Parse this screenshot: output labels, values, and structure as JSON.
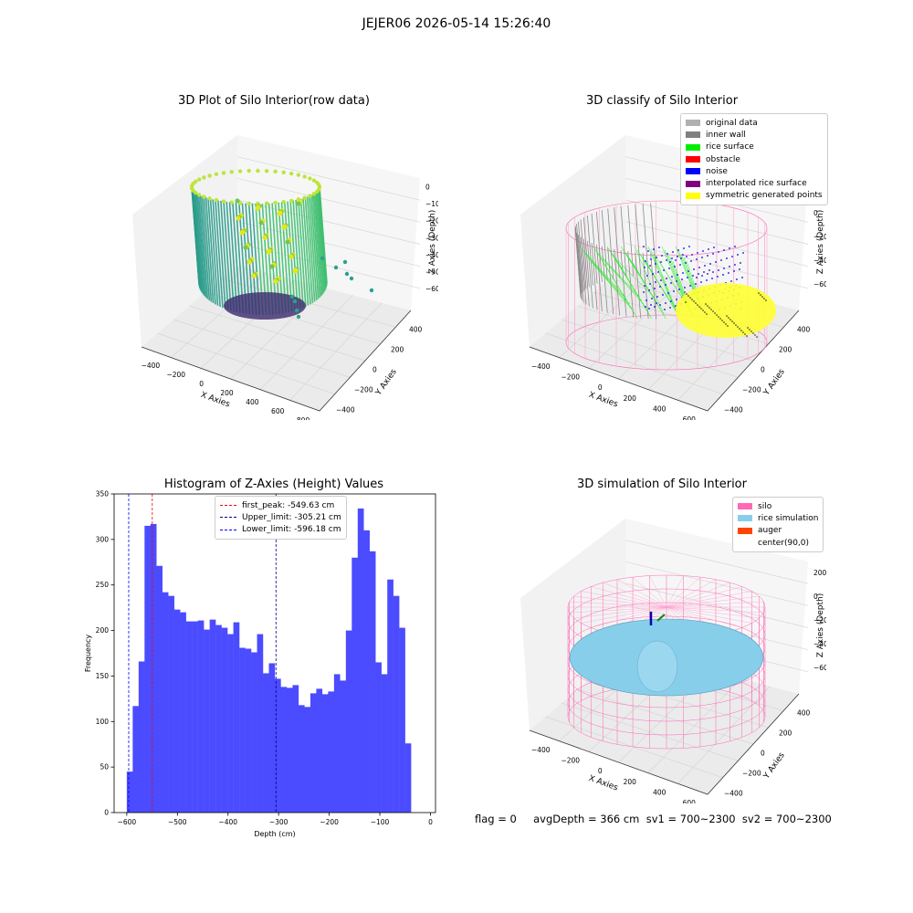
{
  "page": {
    "suptitle": "JEJER06 2026-05-14 15:26:40",
    "footer": "flag = 0     avgDepth = 366 cm  sv1 = 700~2300  sv2 = 700~2300"
  },
  "plots": {
    "rows": {
      "title": "3D Plot of Silo Interior(row data)",
      "xlabel": "X Axies",
      "ylabel": "Y Axies",
      "zlabel": "Z Axies (Depth)",
      "xticks": [
        "−400",
        "−200",
        "0",
        "200",
        "400",
        "600",
        "800"
      ],
      "yticks": [
        "−400",
        "−200",
        "0",
        "200",
        "400"
      ],
      "zticks": [
        "0",
        "−100",
        "−200",
        "−300",
        "−400",
        "−500",
        "−600"
      ]
    },
    "classify": {
      "title": "3D classify of Silo Interior",
      "xlabel": "X Axies",
      "ylabel": "Y Axies",
      "zlabel": "Z Axies (Depth)",
      "xticks": [
        "−400",
        "−200",
        "0",
        "200",
        "400",
        "600"
      ],
      "yticks": [
        "−400",
        "−200",
        "0",
        "200",
        "400"
      ],
      "zticks": [
        "200",
        "0",
        "−200",
        "−400",
        "−600"
      ],
      "legend": [
        {
          "label": "original data",
          "color": "#b0b0b0"
        },
        {
          "label": "inner wall",
          "color": "#808080"
        },
        {
          "label": "rice surface",
          "color": "#00ee00"
        },
        {
          "label": "obstacle",
          "color": "#ff0000"
        },
        {
          "label": "noise",
          "color": "#0000ff"
        },
        {
          "label": "interpolated rice surface",
          "color": "#800080"
        },
        {
          "label": "symmetric generated points",
          "color": "#ffff00"
        }
      ]
    },
    "hist": {
      "title": "Histogram of Z-Axies (Height) Values",
      "xlabel": "Depth (cm)",
      "ylabel": "Frequency"
    },
    "sim": {
      "title": "3D simulation of Silo Interior",
      "xlabel": "X Axies",
      "ylabel": "Y Axies",
      "zlabel": "Z Axies (Depth)",
      "xticks": [
        "−400",
        "−200",
        "0",
        "200",
        "400",
        "600"
      ],
      "yticks": [
        "−400",
        "−200",
        "0",
        "200",
        "400"
      ],
      "zticks": [
        "200",
        "0",
        "−200",
        "−400",
        "−600"
      ],
      "legend": [
        {
          "label": "silo",
          "color": "#ff69b4"
        },
        {
          "label": "rice simulation",
          "color": "#87ceeb"
        },
        {
          "label": "auger",
          "color": "#ff4500"
        },
        {
          "label": "center(90,0)",
          "color": ""
        }
      ]
    }
  },
  "chart_data": {
    "type": "bar",
    "title": "Histogram of Z-Axies (Height) Values",
    "xlabel": "Depth (cm)",
    "ylabel": "Frequency",
    "xlim": [
      -625,
      10
    ],
    "ylim": [
      0,
      350
    ],
    "xticks": [
      -600,
      -500,
      -400,
      -300,
      -200,
      -100,
      0
    ],
    "yticks": [
      0,
      50,
      100,
      150,
      200,
      250,
      300,
      350
    ],
    "bin_start": -600,
    "bin_width": 11.7,
    "values": [
      45,
      117,
      166,
      315,
      317,
      271,
      242,
      238,
      223,
      220,
      210,
      210,
      211,
      201,
      212,
      206,
      203,
      196,
      209,
      181,
      180,
      176,
      196,
      153,
      164,
      147,
      138,
      137,
      140,
      118,
      116,
      131,
      136,
      130,
      133,
      152,
      145,
      200,
      280,
      334,
      310,
      287,
      165,
      152,
      256,
      238,
      203,
      76
    ],
    "bar_color": "#4b4bff",
    "lines": [
      {
        "label": "first_peak: -549.63 cm",
        "x": -549.63,
        "color": "#ff0000"
      },
      {
        "label": "Upper_limit: -305.21 cm",
        "x": -305.21,
        "color": "#00008b"
      },
      {
        "label": "Lower_limit: -596.18 cm",
        "x": -596.18,
        "color": "#0000ff"
      }
    ],
    "legend_position": "top-center"
  }
}
